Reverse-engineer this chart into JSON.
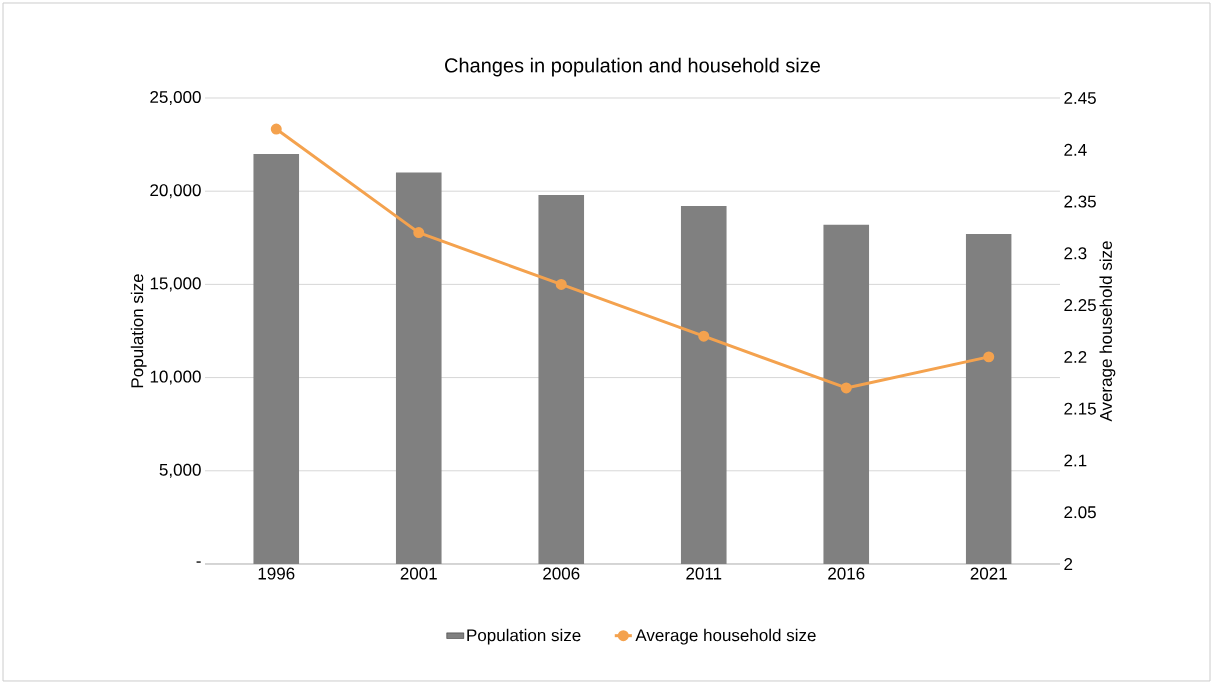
{
  "chart_data": {
    "type": "bar",
    "title": "Changes in population and household size",
    "categories": [
      "1996",
      "2001",
      "2006",
      "2011",
      "2016",
      "2021"
    ],
    "series": [
      {
        "name": "Population size",
        "color": "#808080",
        "values": [
          22000,
          21000,
          19800,
          19200,
          18200,
          17700
        ]
      },
      {
        "name": "Average household size",
        "type": "line",
        "axis": "y2",
        "color": "#f4a24e",
        "values": [
          2.42,
          2.32,
          2.27,
          2.22,
          2.17,
          2.2
        ]
      }
    ],
    "ylabel": "Population size",
    "y2label": "Average household size",
    "ylim": [
      0,
      25000
    ],
    "yticks": [
      {
        "value": 0,
        "label": "-"
      },
      {
        "value": 5000,
        "label": "5,000"
      },
      {
        "value": 10000,
        "label": "10,000"
      },
      {
        "value": 15000,
        "label": "15,000"
      },
      {
        "value": 20000,
        "label": "20,000"
      },
      {
        "value": 25000,
        "label": "25,000"
      }
    ],
    "y2lim": [
      2,
      2.45
    ],
    "y2ticks": [
      2,
      2.05,
      2.1,
      2.15,
      2.2,
      2.25,
      2.3,
      2.35,
      2.4,
      2.45
    ],
    "grid": "y",
    "legend": "bottom",
    "marker": "circle"
  }
}
